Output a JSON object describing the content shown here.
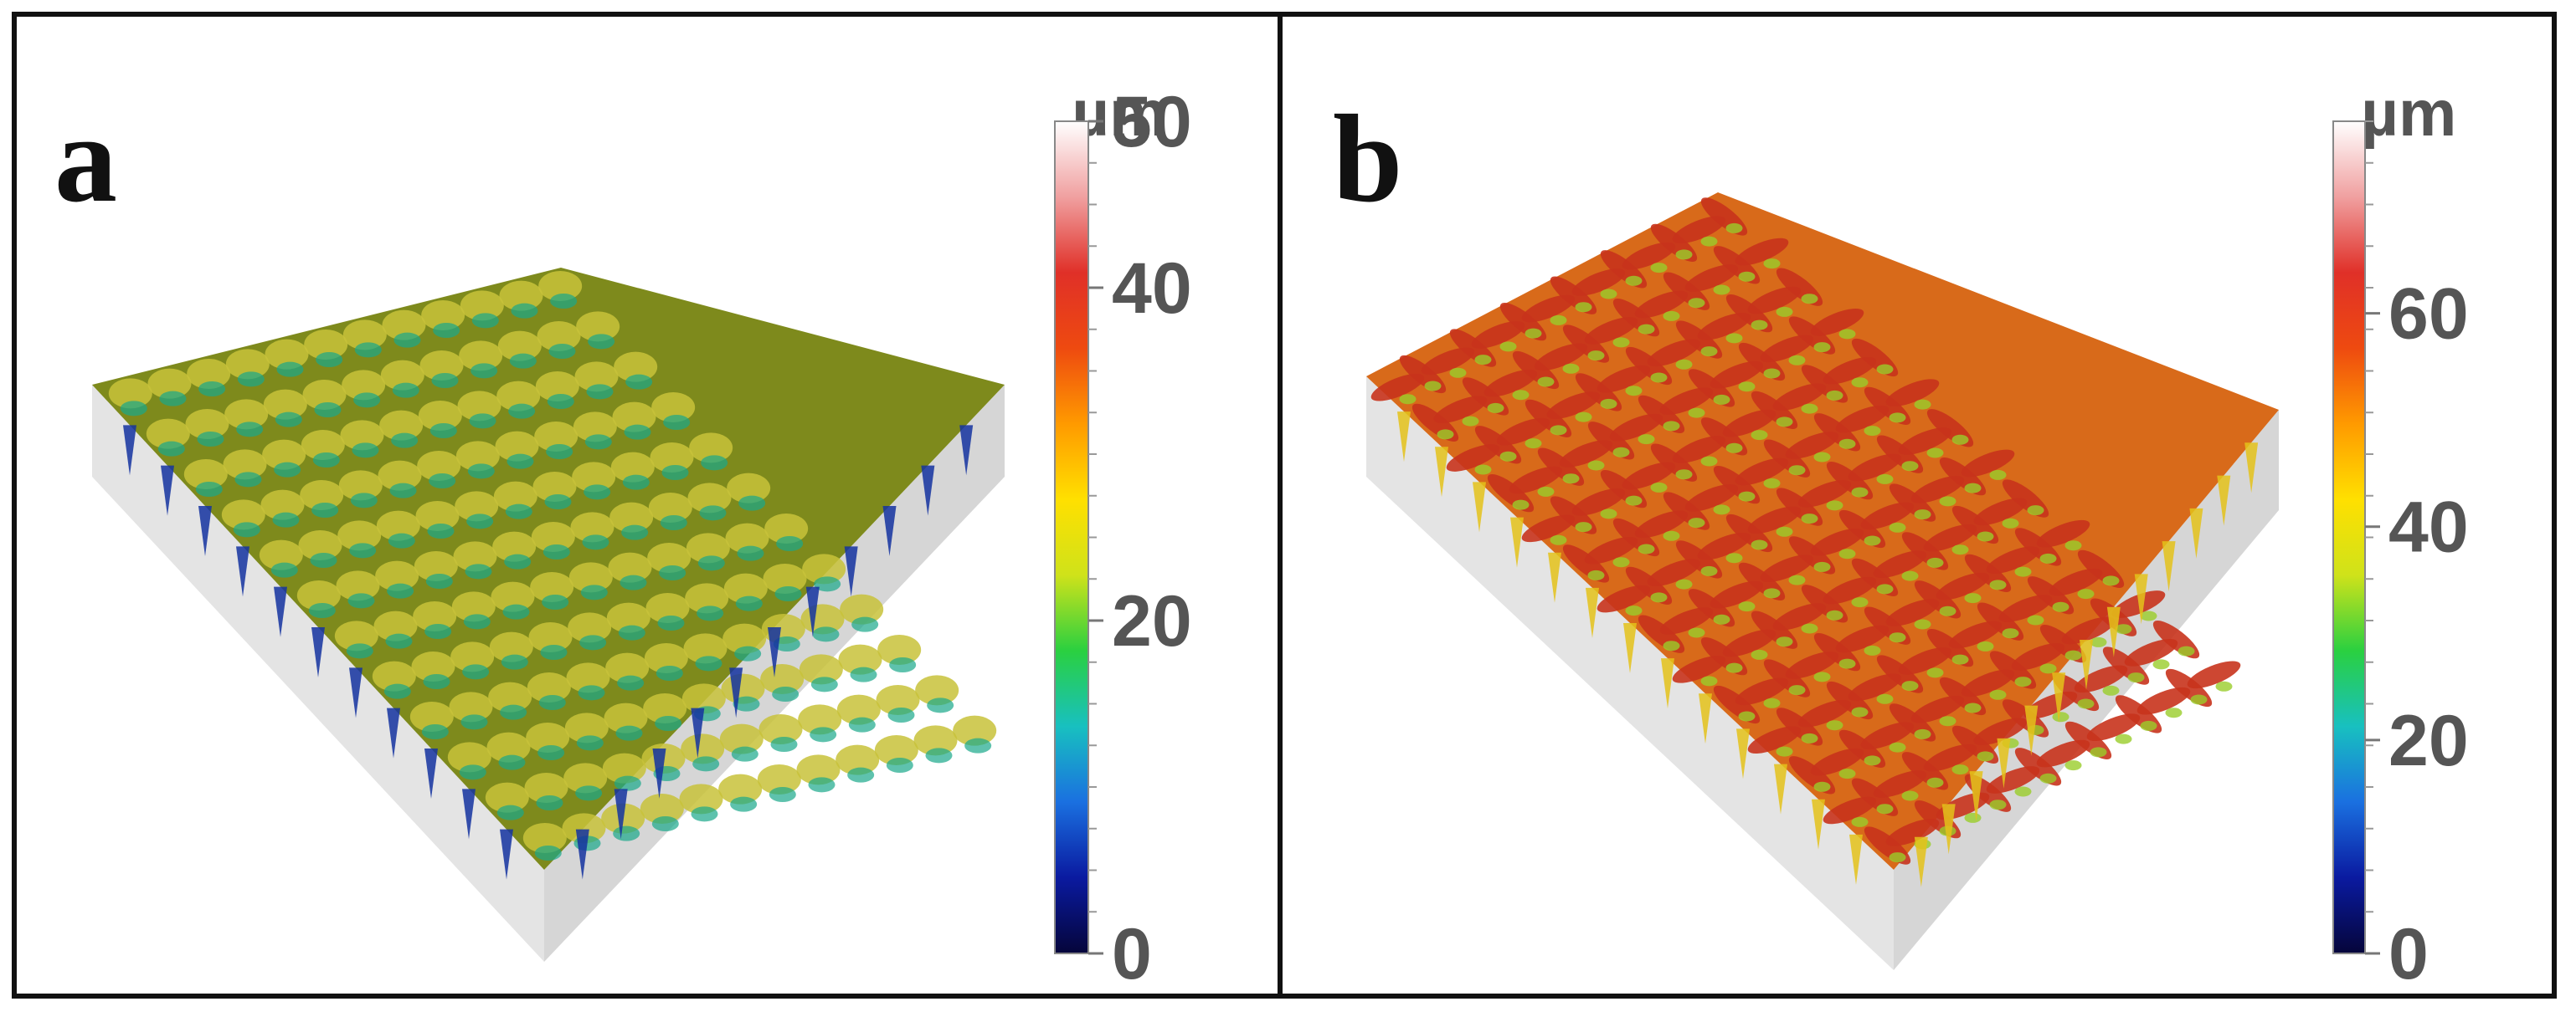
{
  "figure": {
    "panels": [
      {
        "id": "a",
        "letter": "a",
        "unit": "µm",
        "colorbar": {
          "min": 0,
          "max": 50,
          "ticks": [
            0,
            20,
            40,
            50
          ]
        },
        "surface": {
          "pattern": "dimple-array",
          "colors": {
            "base": "#7e8a1c",
            "highlight": "#c8c23a",
            "valley": "#1aa88a",
            "deep": "#1432a0",
            "substrate": "#e6e6e6"
          }
        }
      },
      {
        "id": "b",
        "letter": "b",
        "unit": "µm",
        "colorbar": {
          "min": 0,
          "max": 78,
          "ticks": [
            0,
            20,
            40,
            60
          ]
        },
        "surface": {
          "pattern": "herringbone-weave",
          "colors": {
            "base": "#d86a1a",
            "highlight": "#c8331c",
            "valley": "#9acd2a",
            "deep": "#e4c21a",
            "substrate": "#e6e6e6"
          }
        }
      }
    ],
    "colormap": [
      "#05053a",
      "#0a1aa0",
      "#1a70e0",
      "#18c0c0",
      "#2ad040",
      "#cfe21a",
      "#ffe000",
      "#ff9a00",
      "#ee4a10",
      "#e03028",
      "#f0a0a0",
      "#ffffff"
    ]
  }
}
